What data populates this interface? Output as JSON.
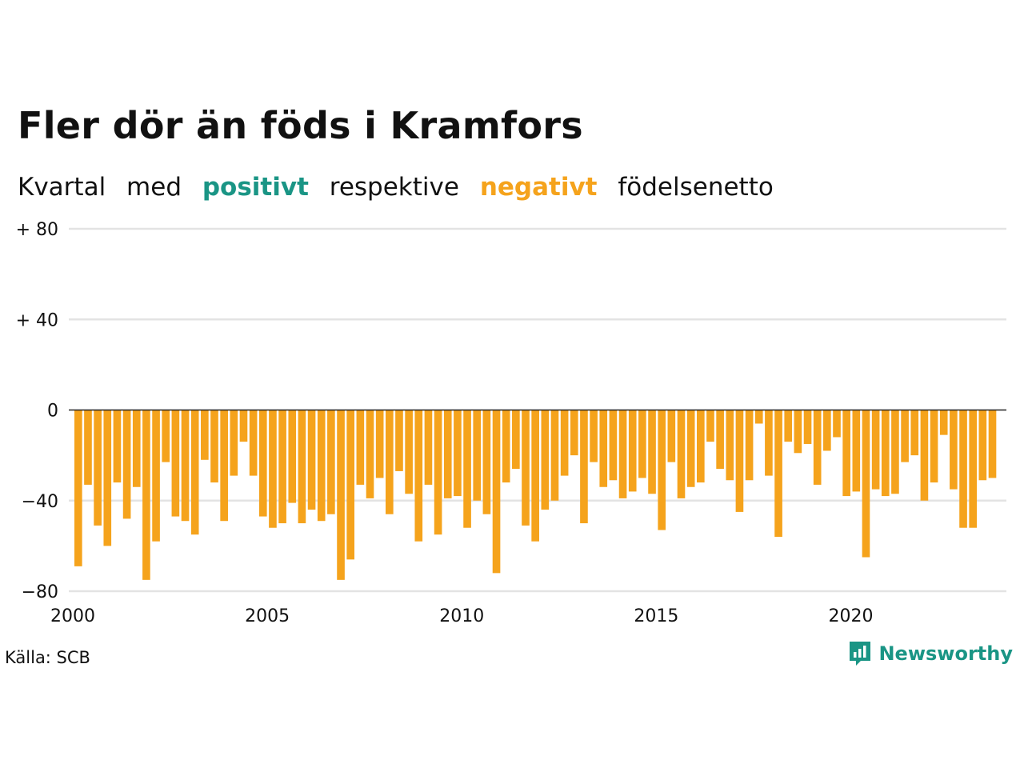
{
  "title": "Fler dör än föds i Kramfors",
  "subtitle": {
    "part1": "Kvartal",
    "part2": "med",
    "positive_word": "positivt",
    "part3": "respektive",
    "negative_word": "negativt",
    "part4": "födelsenetto"
  },
  "colors": {
    "positive": "#1a9585",
    "negative": "#f5a31c",
    "grid": "#e3e3e3",
    "zero_line": "#222222"
  },
  "source": "Källa: SCB",
  "brand": {
    "name": "Newsworthy",
    "icon": "newsworthy-logo-icon"
  },
  "chart_data": {
    "type": "bar",
    "title": "Fler dör än föds i Kramfors",
    "ylim": [
      -80,
      80
    ],
    "yticks": [
      {
        "value": 80,
        "label": "+ 80"
      },
      {
        "value": 40,
        "label": "+ 40"
      },
      {
        "value": 0,
        "label": "0"
      },
      {
        "value": -40,
        "label": "−40"
      },
      {
        "value": -80,
        "label": "−80"
      }
    ],
    "xticks": [
      {
        "year": 2000,
        "label": "2000"
      },
      {
        "year": 2005,
        "label": "2005"
      },
      {
        "year": 2010,
        "label": "2010"
      },
      {
        "year": 2015,
        "label": "2015"
      },
      {
        "year": 2020,
        "label": "2020"
      }
    ],
    "xlim": [
      2000,
      2024
    ],
    "grid": true,
    "start_year": 2000,
    "periods_per_year": 4,
    "values": [
      -69,
      -33,
      -51,
      -60,
      -32,
      -48,
      -34,
      -75,
      -58,
      -23,
      -47,
      -49,
      -55,
      -22,
      -32,
      -49,
      -29,
      -14,
      -29,
      -47,
      -52,
      -50,
      -41,
      -50,
      -44,
      -49,
      -46,
      -75,
      -66,
      -33,
      -39,
      -30,
      -46,
      -27,
      -37,
      -58,
      -33,
      -55,
      -39,
      -38,
      -52,
      -40,
      -46,
      -72,
      -32,
      -26,
      -51,
      -58,
      -44,
      -40,
      -29,
      -20,
      -50,
      -23,
      -34,
      -31,
      -39,
      -36,
      -30,
      -37,
      -53,
      -23,
      -39,
      -34,
      -32,
      -14,
      -26,
      -31,
      -45,
      -31,
      -6,
      -29,
      -56,
      -14,
      -19,
      -15,
      -33,
      -18,
      -12,
      -38,
      -36,
      -65,
      -35,
      -38,
      -37,
      -23,
      -20,
      -40,
      -32,
      -11,
      -35,
      -52,
      -52,
      -31,
      -30
    ]
  }
}
